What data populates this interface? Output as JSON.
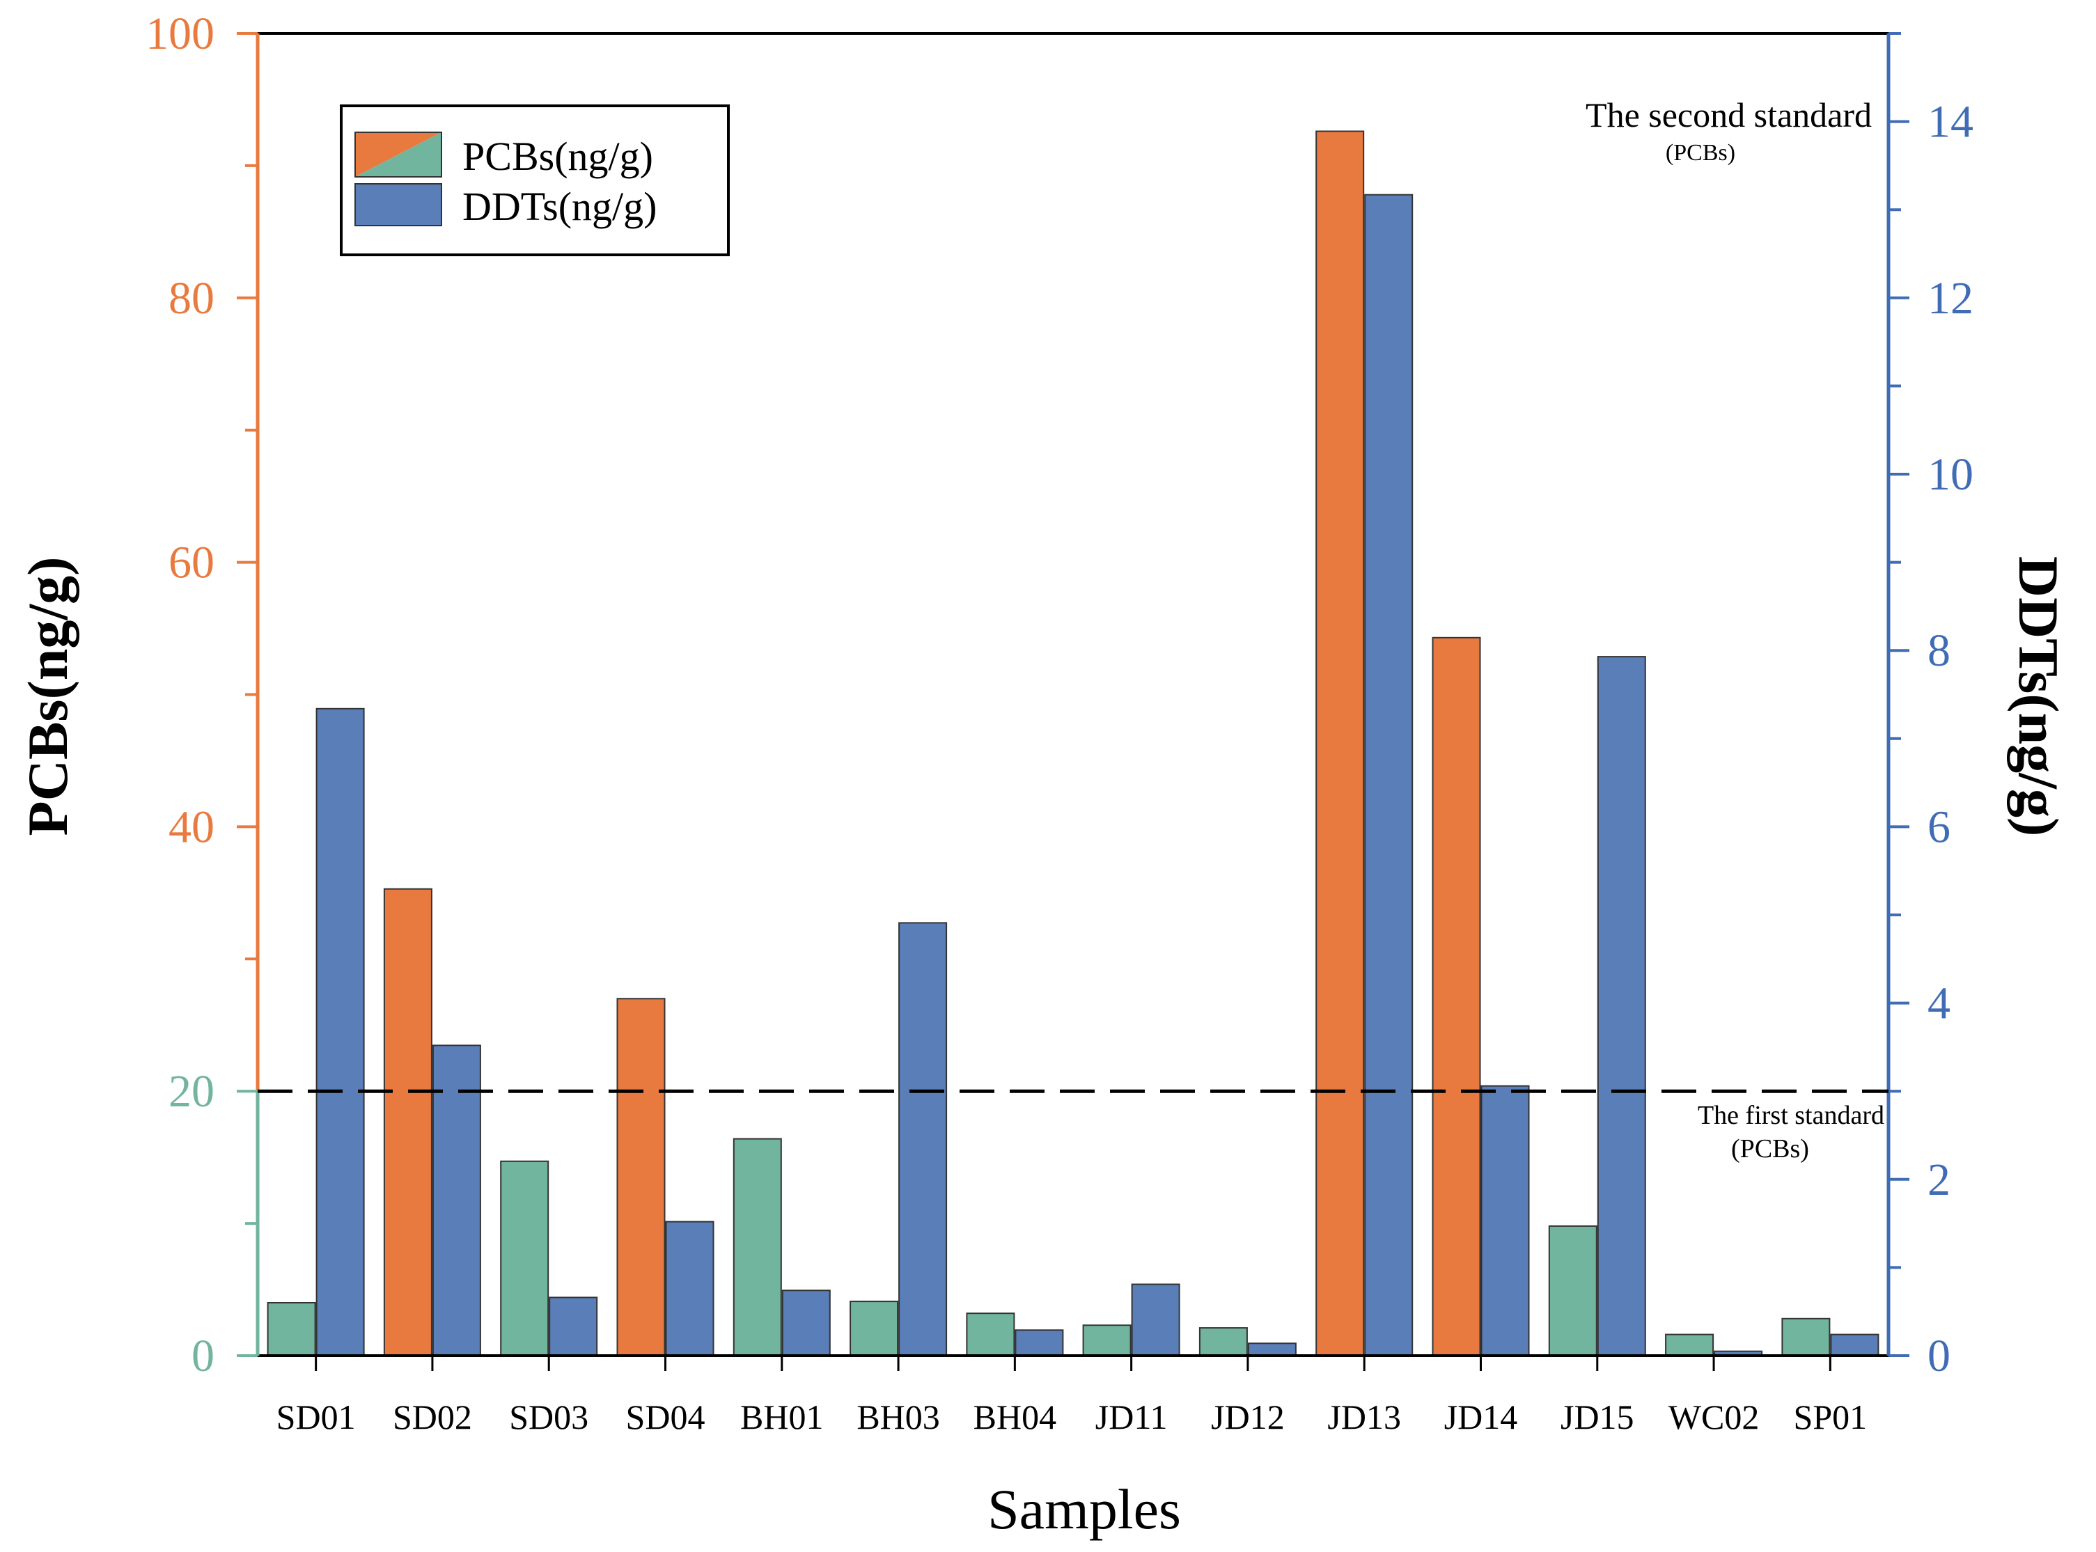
{
  "chart_data": {
    "type": "bar",
    "categories": [
      "SD01",
      "SD02",
      "SD03",
      "SD04",
      "BH01",
      "BH03",
      "BH04",
      "JD11",
      "JD12",
      "JD13",
      "JD14",
      "JD15",
      "WC02",
      "SP01"
    ],
    "series": [
      {
        "name": "PCBs(ng/g)",
        "axis": "left",
        "values": [
          4.0,
          35.3,
          14.7,
          27.0,
          16.4,
          4.1,
          3.2,
          2.3,
          2.1,
          92.6,
          54.3,
          9.8,
          1.6,
          2.8
        ]
      },
      {
        "name": "DDTs(ng/g)",
        "axis": "right",
        "values": [
          7.34,
          3.52,
          0.66,
          1.52,
          0.74,
          4.91,
          0.29,
          0.81,
          0.14,
          13.17,
          3.06,
          7.93,
          0.05,
          0.24
        ]
      }
    ],
    "xlabel": "Samples",
    "ylabel": "PCBs(ng/g)",
    "y2label": "DDTs(ng/g)",
    "ylim": [
      0,
      100
    ],
    "y2lim": [
      0,
      15
    ],
    "yticks": [
      0,
      20,
      40,
      60,
      80,
      100
    ],
    "y2ticks": [
      0,
      2,
      4,
      6,
      8,
      10,
      12,
      14
    ],
    "threshold": 20,
    "reference_lines": [
      {
        "value": 20,
        "style": "dashed",
        "label": "The first standard",
        "sublabel": "(PCBs)"
      },
      {
        "value": 100,
        "style": "solid",
        "label": "The second standard",
        "sublabel": "(PCBs)"
      }
    ],
    "legend": {
      "position": "top-left",
      "entries": [
        "PCBs(ng/g)",
        "DDTs(ng/g)"
      ]
    }
  },
  "colors": {
    "pcbs_above": "#E97A3F",
    "pcbs_below": "#72B59E",
    "ddts": "#5A7EB8",
    "left_axis_upper": "#E97A3F",
    "left_axis_lower": "#72B59E",
    "right_axis": "#3F6CB5",
    "text": "#000000"
  }
}
